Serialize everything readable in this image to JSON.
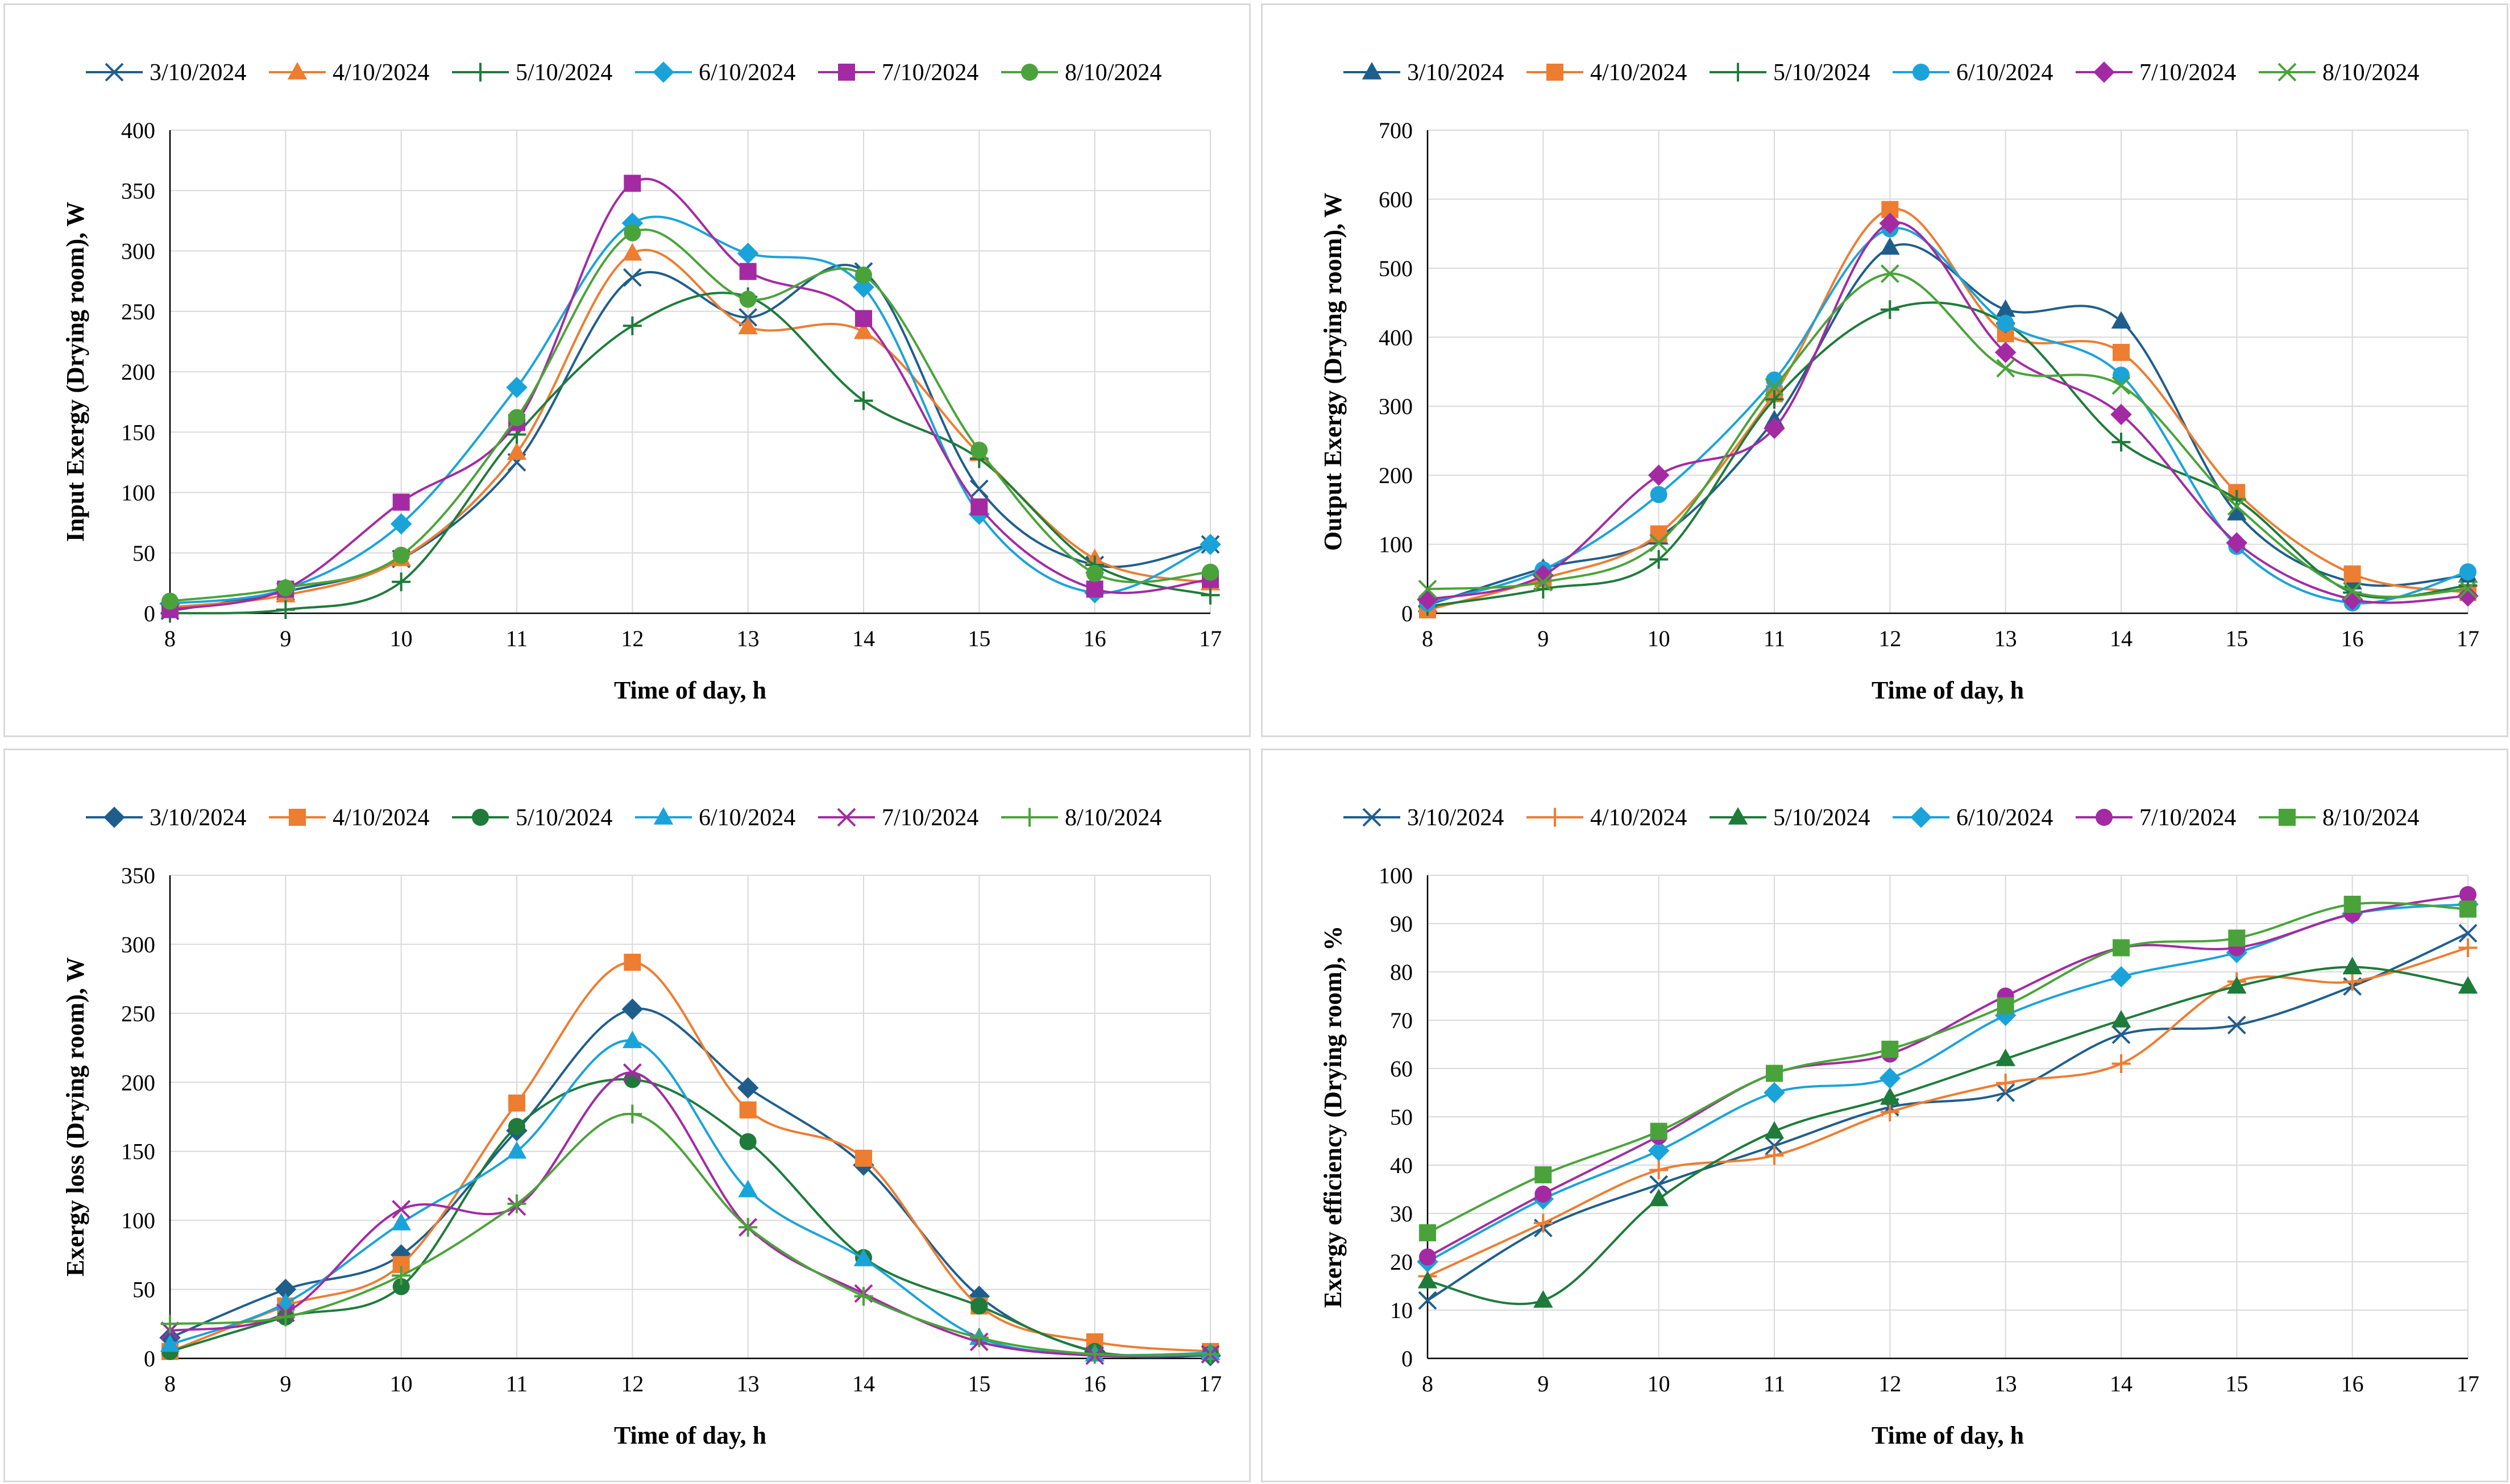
{
  "chart_data": [
    {
      "type": "line",
      "title": "",
      "xlabel": "Time of day, h",
      "ylabel": "Input Exergy (Drying room), W",
      "x": [
        8,
        9,
        10,
        11,
        12,
        13,
        14,
        15,
        16,
        17
      ],
      "xlim": [
        8,
        17
      ],
      "ylim": [
        0,
        400
      ],
      "ystep": 50,
      "grid": true,
      "legend": "top",
      "series": [
        {
          "name": "3/10/2024",
          "color": "#1f5e8c",
          "marker": "x",
          "values": [
            2,
            18,
            45,
            125,
            278,
            245,
            283,
            103,
            40,
            57
          ]
        },
        {
          "name": "4/10/2024",
          "color": "#ed7d31",
          "marker": "triangle",
          "values": [
            5,
            15,
            45,
            133,
            298,
            237,
            233,
            132,
            45,
            25
          ]
        },
        {
          "name": "5/10/2024",
          "color": "#1e7b3a",
          "marker": "plus",
          "values": [
            0,
            3,
            26,
            148,
            238,
            262,
            176,
            128,
            40,
            15
          ]
        },
        {
          "name": "6/10/2024",
          "color": "#1aa3d9",
          "marker": "diamond",
          "values": [
            8,
            20,
            74,
            187,
            323,
            298,
            270,
            82,
            17,
            57
          ]
        },
        {
          "name": "7/10/2024",
          "color": "#a32aa3",
          "marker": "square",
          "values": [
            3,
            20,
            92,
            158,
            356,
            283,
            244,
            88,
            20,
            28
          ]
        },
        {
          "name": "8/10/2024",
          "color": "#4aa33a",
          "marker": "circle",
          "values": [
            10,
            21,
            48,
            162,
            315,
            260,
            280,
            135,
            33,
            34
          ]
        }
      ]
    },
    {
      "type": "line",
      "title": "",
      "xlabel": "Time of day, h",
      "ylabel": "Output Exergy (Drying room), W",
      "x": [
        8,
        9,
        10,
        11,
        12,
        13,
        14,
        15,
        16,
        17
      ],
      "xlim": [
        8,
        17
      ],
      "ylim": [
        0,
        700
      ],
      "ystep": 100,
      "grid": true,
      "legend": "top",
      "series": [
        {
          "name": "3/10/2024",
          "color": "#1f5e8c",
          "marker": "triangle",
          "values": [
            12,
            65,
            110,
            280,
            530,
            440,
            423,
            145,
            45,
            55
          ]
        },
        {
          "name": "4/10/2024",
          "color": "#ed7d31",
          "marker": "square",
          "values": [
            5,
            50,
            115,
            318,
            585,
            405,
            378,
            175,
            57,
            30
          ]
        },
        {
          "name": "5/10/2024",
          "color": "#1e7b3a",
          "marker": "plus",
          "values": [
            10,
            35,
            78,
            310,
            440,
            420,
            248,
            165,
            30,
            40
          ]
        },
        {
          "name": "6/10/2024",
          "color": "#1aa3d9",
          "marker": "circle",
          "values": [
            15,
            63,
            172,
            338,
            557,
            420,
            345,
            97,
            15,
            60
          ]
        },
        {
          "name": "7/10/2024",
          "color": "#a32aa3",
          "marker": "diamond",
          "values": [
            20,
            55,
            200,
            268,
            565,
            378,
            288,
            102,
            20,
            25
          ]
        },
        {
          "name": "8/10/2024",
          "color": "#4aa33a",
          "marker": "x",
          "values": [
            35,
            45,
            102,
            328,
            492,
            355,
            330,
            155,
            32,
            35
          ]
        }
      ]
    },
    {
      "type": "line",
      "title": "",
      "xlabel": "Time of day, h",
      "ylabel": "Exergy loss (Drying room), W",
      "x": [
        8,
        9,
        10,
        11,
        12,
        13,
        14,
        15,
        16,
        17
      ],
      "xlim": [
        8,
        17
      ],
      "ylim": [
        0,
        350
      ],
      "ystep": 50,
      "grid": true,
      "legend": "top",
      "series": [
        {
          "name": "3/10/2024",
          "color": "#1f5e8c",
          "marker": "diamond",
          "values": [
            15,
            50,
            75,
            165,
            253,
            196,
            140,
            45,
            5,
            2
          ]
        },
        {
          "name": "4/10/2024",
          "color": "#ed7d31",
          "marker": "square",
          "values": [
            5,
            38,
            68,
            185,
            287,
            180,
            145,
            38,
            12,
            5
          ]
        },
        {
          "name": "5/10/2024",
          "color": "#1e7b3a",
          "marker": "circle",
          "values": [
            5,
            30,
            52,
            168,
            202,
            157,
            73,
            38,
            5,
            3
          ]
        },
        {
          "name": "6/10/2024",
          "color": "#1aa3d9",
          "marker": "triangle",
          "values": [
            10,
            40,
            98,
            150,
            230,
            122,
            72,
            15,
            3,
            4
          ]
        },
        {
          "name": "7/10/2024",
          "color": "#a32aa3",
          "marker": "x",
          "values": [
            20,
            33,
            108,
            110,
            207,
            95,
            47,
            12,
            2,
            3
          ]
        },
        {
          "name": "8/10/2024",
          "color": "#4aa33a",
          "marker": "plus",
          "values": [
            25,
            30,
            60,
            112,
            177,
            95,
            45,
            15,
            3,
            3
          ]
        }
      ]
    },
    {
      "type": "line",
      "title": "",
      "xlabel": "Time of day, h",
      "ylabel": "Exergy efficiency (Drying room), %",
      "x": [
        8,
        9,
        10,
        11,
        12,
        13,
        14,
        15,
        16,
        17
      ],
      "xlim": [
        8,
        17
      ],
      "ylim": [
        0,
        100
      ],
      "ystep": 10,
      "grid": true,
      "legend": "top",
      "series": [
        {
          "name": "3/10/2024",
          "color": "#1f5e8c",
          "marker": "x",
          "values": [
            12,
            27,
            36,
            44,
            52,
            55,
            67,
            69,
            77,
            88
          ]
        },
        {
          "name": "4/10/2024",
          "color": "#ed7d31",
          "marker": "plus",
          "values": [
            17,
            28,
            39,
            42,
            51,
            57,
            61,
            78,
            78,
            85
          ]
        },
        {
          "name": "5/10/2024",
          "color": "#1e7b3a",
          "marker": "triangle",
          "values": [
            16,
            12,
            33,
            47,
            54,
            62,
            70,
            77,
            81,
            77
          ]
        },
        {
          "name": "6/10/2024",
          "color": "#1aa3d9",
          "marker": "diamond",
          "values": [
            20,
            33,
            43,
            55,
            58,
            71,
            79,
            84,
            92,
            94
          ]
        },
        {
          "name": "7/10/2024",
          "color": "#a32aa3",
          "marker": "circle",
          "values": [
            21,
            34,
            46,
            59,
            63,
            75,
            85,
            85,
            92,
            96
          ]
        },
        {
          "name": "8/10/2024",
          "color": "#4aa33a",
          "marker": "square",
          "values": [
            26,
            38,
            47,
            59,
            64,
            73,
            85,
            87,
            94,
            93
          ]
        }
      ]
    }
  ]
}
